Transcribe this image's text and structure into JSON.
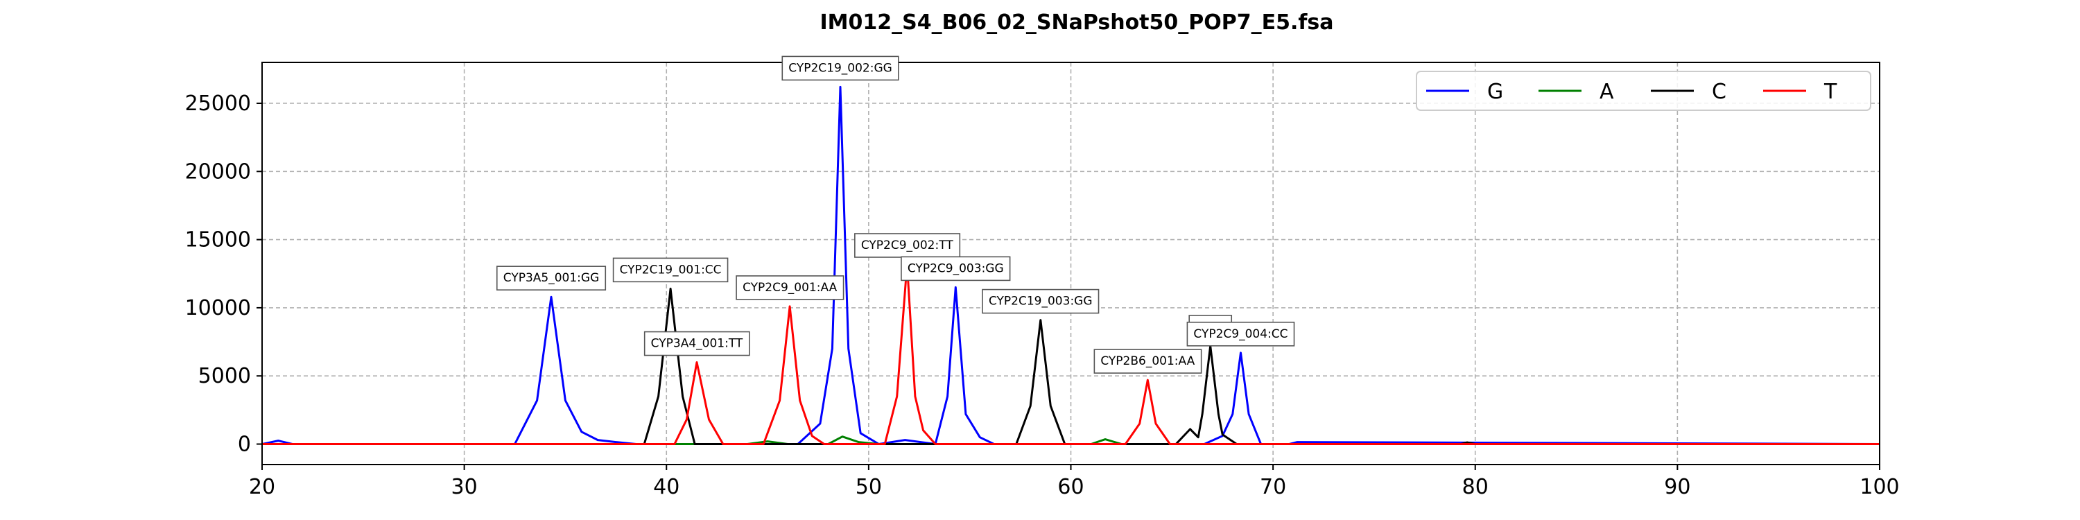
{
  "chart_data": {
    "type": "line",
    "title": "IM012_S4_B06_02_SNaPshot50_POP7_E5.fsa",
    "xlabel": "",
    "ylabel": "",
    "xlim": [
      20,
      100
    ],
    "ylim": [
      -1500,
      28000
    ],
    "x_ticks": [
      20,
      30,
      40,
      50,
      60,
      70,
      80,
      90,
      100
    ],
    "y_ticks": [
      0,
      5000,
      10000,
      15000,
      20000,
      25000
    ],
    "grid": true,
    "legend_position": "top-right",
    "series": [
      {
        "name": "G",
        "color": "#0000ff",
        "x": [
          20,
          20.8,
          21.5,
          32.5,
          33.6,
          34.3,
          35.0,
          35.8,
          36.6,
          37.5,
          38.5,
          46.5,
          47.6,
          48.2,
          48.6,
          49.0,
          49.6,
          50.5,
          51.8,
          53.3,
          53.9,
          54.3,
          54.8,
          55.5,
          56.2,
          66.6,
          67.5,
          68.0,
          68.4,
          68.8,
          69.4,
          70.8,
          71.2,
          100
        ],
        "y": [
          0,
          250,
          0,
          0,
          3200,
          10800,
          3200,
          900,
          300,
          150,
          0,
          0,
          1500,
          7000,
          26200,
          7000,
          800,
          0,
          300,
          0,
          3500,
          11500,
          2200,
          500,
          0,
          0,
          600,
          2200,
          6700,
          2200,
          0,
          0,
          150,
          0
        ]
      },
      {
        "name": "A",
        "color": "#008000",
        "x": [
          20,
          44,
          45.0,
          46,
          48.0,
          48.7,
          49.5,
          50.5,
          61,
          61.7,
          62.5,
          64,
          100
        ],
        "y": [
          0,
          0,
          200,
          0,
          0,
          550,
          150,
          0,
          0,
          350,
          0,
          0,
          0
        ],
        "no_legend_marker": false
      },
      {
        "name": "C",
        "color": "#000000",
        "x": [
          20,
          38.9,
          39.6,
          40.2,
          40.8,
          41.4,
          57.3,
          58.0,
          58.5,
          59.0,
          59.7,
          65.2,
          65.9,
          66.3,
          66.5,
          66.9,
          67.3,
          67.5,
          67.9,
          68.2,
          79.3,
          79.6,
          80.0,
          100
        ],
        "y": [
          0,
          0,
          3500,
          11400,
          3500,
          0,
          0,
          2800,
          9100,
          2800,
          0,
          0,
          1100,
          500,
          2200,
          7200,
          2200,
          700,
          300,
          0,
          0,
          120,
          0,
          0
        ],
        "no_legend_marker": false
      },
      {
        "name": "T",
        "color": "#ff0000",
        "x": [
          20,
          40.4,
          41.0,
          41.5,
          42.1,
          42.8,
          44.8,
          45.6,
          46.1,
          46.6,
          47.2,
          47.8,
          50.8,
          51.4,
          51.9,
          52.3,
          52.7,
          53.3,
          62.7,
          63.4,
          63.8,
          64.2,
          64.9,
          100
        ],
        "y": [
          0,
          0,
          1800,
          6000,
          1800,
          0,
          0,
          3200,
          10100,
          3200,
          600,
          0,
          0,
          3500,
          13200,
          3500,
          1000,
          0,
          0,
          1500,
          4700,
          1500,
          0,
          0
        ],
        "no_legend_marker": false
      }
    ],
    "annotations": [
      {
        "text": "CYP3A5_001:GG",
        "x": 34.3,
        "y": 10800
      },
      {
        "text": "CYP2C19_001:CC",
        "x": 40.2,
        "y": 11400
      },
      {
        "text": "CYP3A4_001:TT",
        "x": 41.5,
        "y": 6000
      },
      {
        "text": "CYP2C9_001:AA",
        "x": 46.1,
        "y": 10100
      },
      {
        "text": "CYP2C19_002:GG",
        "x": 48.6,
        "y": 26200
      },
      {
        "text": "CYP2C9_002:TT",
        "x": 51.9,
        "y": 13200
      },
      {
        "text": "CYP2C9_003:GG",
        "x": 54.3,
        "y": 11500
      },
      {
        "text": "CYP2C19_003:GG",
        "x": 58.5,
        "y": 9100
      },
      {
        "text": "CYP2B6_001:AA",
        "x": 63.8,
        "y": 4700
      },
      {
        "text": "CYP2",
        "x": 66.9,
        "y": 7200
      },
      {
        "text": "CYP2C9_004:CC",
        "x": 68.4,
        "y": 6700
      }
    ]
  }
}
